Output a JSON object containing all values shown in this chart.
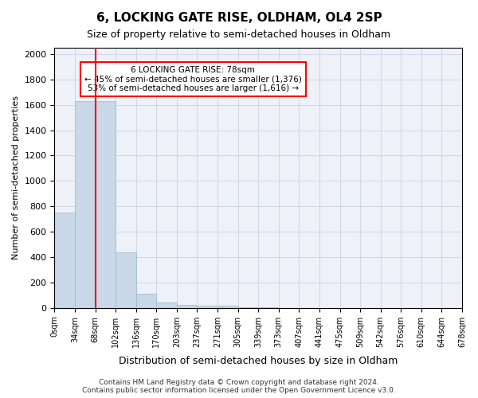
{
  "title": "6, LOCKING GATE RISE, OLDHAM, OL4 2SP",
  "subtitle": "Size of property relative to semi-detached houses in Oldham",
  "xlabel": "Distribution of semi-detached houses by size in Oldham",
  "ylabel": "Number of semi-detached properties",
  "footer_line1": "Contains HM Land Registry data © Crown copyright and database right 2024.",
  "footer_line2": "Contains public sector information licensed under the Open Government Licence v3.0.",
  "bin_labels": [
    "0sqm",
    "34sqm",
    "68sqm",
    "102sqm",
    "136sqm",
    "170sqm",
    "203sqm",
    "237sqm",
    "271sqm",
    "305sqm",
    "339sqm",
    "373sqm",
    "407sqm",
    "441sqm",
    "475sqm",
    "509sqm",
    "542sqm",
    "576sqm",
    "610sqm",
    "644sqm",
    "678sqm"
  ],
  "bar_values": [
    750,
    1630,
    1630,
    440,
    110,
    40,
    25,
    15,
    15,
    2,
    2,
    1,
    0,
    0,
    0,
    0,
    0,
    0,
    0,
    0
  ],
  "bar_color": "#c8d8e8",
  "bar_edge_color": "#a0b8cc",
  "property_line_x": 2.0,
  "annotation_text_line1": "6 LOCKING GATE RISE: 78sqm",
  "annotation_text_line2": "← 45% of semi-detached houses are smaller (1,376)",
  "annotation_text_line3": "53% of semi-detached houses are larger (1,616) →",
  "annotation_box_color": "white",
  "annotation_box_edge_color": "red",
  "vline_color": "red",
  "ylim": [
    0,
    2050
  ],
  "yticks": [
    0,
    200,
    400,
    600,
    800,
    1000,
    1200,
    1400,
    1600,
    1800,
    2000
  ],
  "grid_color": "#d0d8e8",
  "background_color": "#eef2f8"
}
